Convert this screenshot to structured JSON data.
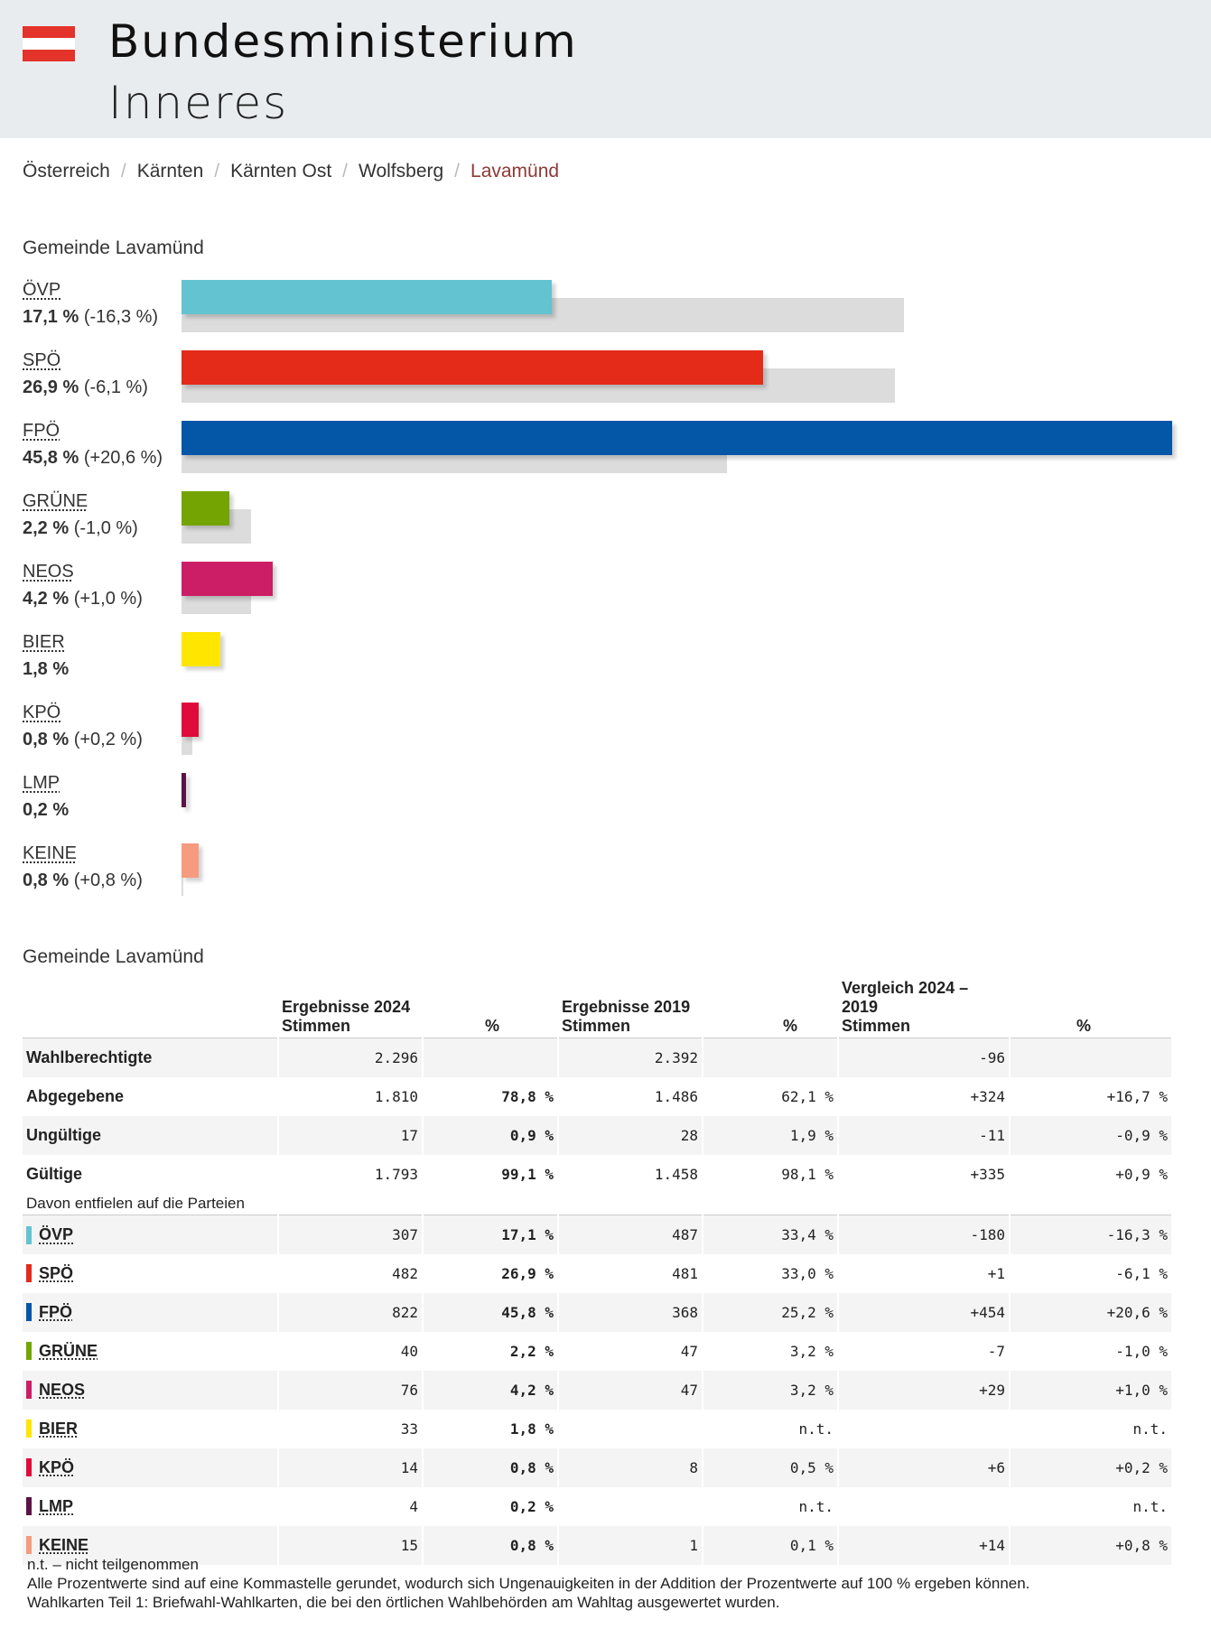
{
  "header": {
    "title_line1": "Bundesministerium",
    "title_line2": "Inneres",
    "flag_colors": [
      "#e3332a",
      "#ffffff",
      "#e3332a"
    ]
  },
  "breadcrumb": [
    "Österreich",
    "Kärnten",
    "Kärnten Ost",
    "Wolfsberg",
    "Lavamünd"
  ],
  "chart_section_title": "Gemeinde Lavamünd",
  "table_section_title": "Gemeinde Lavamünd",
  "chart_data": {
    "type": "bar",
    "orientation": "horizontal",
    "scale_max_percent": 45.8,
    "categories": [
      "ÖVP",
      "SPÖ",
      "FPÖ",
      "GRÜNE",
      "NEOS",
      "BIER",
      "KPÖ",
      "LMP",
      "KEINE"
    ],
    "series": [
      {
        "values": [
          17.1,
          26.9,
          45.8,
          2.2,
          4.2,
          1.8,
          0.8,
          0.2,
          0.8
        ]
      },
      {
        "values": [
          33.4,
          33.0,
          25.2,
          3.2,
          3.2,
          null,
          0.5,
          null,
          0.1
        ]
      }
    ],
    "colors": [
      "#63c3d1",
      "#e42a19",
      "#0456a7",
      "#74a402",
      "#cc1e66",
      "#ffe600",
      "#e00b3b",
      "#5a1346",
      "#f69b7d"
    ],
    "value_labels": [
      "17,1 %",
      "26,9 %",
      "45,8 %",
      "2,2 %",
      "4,2 %",
      "1,8 %",
      "0,8 %",
      "0,2 %",
      "0,8 %"
    ],
    "change_labels": [
      "(-16,3 %)",
      "(-6,1 %)",
      "(+20,6 %)",
      "(-1,0 %)",
      "(+1,0 %)",
      "",
      "(+0,2 %)",
      "",
      "(+0,8 %)"
    ]
  },
  "table": {
    "headers": {
      "g2024": "Ergebnisse 2024",
      "g2019": "Ergebnisse 2019",
      "gcmp": "Vergleich 2024 – 2019",
      "stimmen": "Stimmen",
      "pct": "%"
    },
    "summary_rows": [
      {
        "label": "Wahlberechtigte",
        "v24": "2.296",
        "p24": "",
        "v19": "2.392",
        "p19": "",
        "dv": "-96",
        "dp": ""
      },
      {
        "label": "Abgegebene",
        "v24": "1.810",
        "p24": "78,8 %",
        "v19": "1.486",
        "p19": "62,1 %",
        "dv": "+324",
        "dp": "+16,7 %"
      },
      {
        "label": "Ungültige",
        "v24": "17",
        "p24": "0,9 %",
        "v19": "28",
        "p19": "1,9 %",
        "dv": "-11",
        "dp": "-0,9 %"
      },
      {
        "label": "Gültige",
        "v24": "1.793",
        "p24": "99,1 %",
        "v19": "1.458",
        "p19": "98,1 %",
        "dv": "+335",
        "dp": "+0,9 %"
      }
    ],
    "davon": "Davon entfielen auf die Parteien",
    "party_rows": [
      {
        "label": "ÖVP",
        "color": "#63c3d1",
        "v24": "307",
        "p24": "17,1 %",
        "v19": "487",
        "p19": "33,4 %",
        "dv": "-180",
        "dp": "-16,3 %"
      },
      {
        "label": "SPÖ",
        "color": "#e42a19",
        "v24": "482",
        "p24": "26,9 %",
        "v19": "481",
        "p19": "33,0 %",
        "dv": "+1",
        "dp": "-6,1 %"
      },
      {
        "label": "FPÖ",
        "color": "#0456a7",
        "v24": "822",
        "p24": "45,8 %",
        "v19": "368",
        "p19": "25,2 %",
        "dv": "+454",
        "dp": "+20,6 %"
      },
      {
        "label": "GRÜNE",
        "color": "#74a402",
        "v24": "40",
        "p24": "2,2 %",
        "v19": "47",
        "p19": "3,2 %",
        "dv": "-7",
        "dp": "-1,0 %"
      },
      {
        "label": "NEOS",
        "color": "#cc1e66",
        "v24": "76",
        "p24": "4,2 %",
        "v19": "47",
        "p19": "3,2 %",
        "dv": "+29",
        "dp": "+1,0 %"
      },
      {
        "label": "BIER",
        "color": "#ffe600",
        "v24": "33",
        "p24": "1,8 %",
        "v19": "",
        "p19": "n.t.",
        "dv": "",
        "dp": "n.t."
      },
      {
        "label": "KPÖ",
        "color": "#e00b3b",
        "v24": "14",
        "p24": "0,8 %",
        "v19": "8",
        "p19": "0,5 %",
        "dv": "+6",
        "dp": "+0,2 %"
      },
      {
        "label": "LMP",
        "color": "#5a1346",
        "v24": "4",
        "p24": "0,2 %",
        "v19": "",
        "p19": "n.t.",
        "dv": "",
        "dp": "n.t."
      },
      {
        "label": "KEINE",
        "color": "#f69b7d",
        "v24": "15",
        "p24": "0,8 %",
        "v19": "1",
        "p19": "0,1 %",
        "dv": "+14",
        "dp": "+0,8 %"
      }
    ]
  },
  "footer": [
    "n.t. – nicht teilgenommen",
    "Alle Prozentwerte sind auf eine Kommastelle gerundet, wodurch sich Ungenauigkeiten in der Addition der Prozentwerte auf 100 % ergeben können.",
    "Wahlkarten Teil 1: Briefwahl-Wahlkarten, die bei den örtlichen Wahlbehörden am Wahltag ausgewertet wurden."
  ]
}
